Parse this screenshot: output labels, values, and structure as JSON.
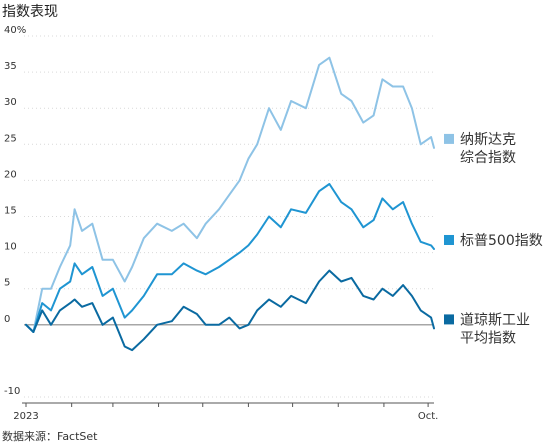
{
  "chart_data": {
    "type": "line",
    "title": "指数表现",
    "source": "数据来源：FactSet",
    "ylim": [
      -10,
      40
    ],
    "y_ticks": [
      -10,
      0,
      5,
      10,
      15,
      20,
      25,
      30,
      35,
      40
    ],
    "y_tick_labels": [
      "-10",
      "0",
      "5",
      "10",
      "15",
      "20",
      "25",
      "30",
      "35",
      "40%"
    ],
    "x_range": [
      "2023-01-01",
      "2023-10-05"
    ],
    "x_tick_labels": [
      {
        "date": "2023-01-01",
        "label": "2023"
      },
      {
        "date": "2023-10-01",
        "label": "Oct."
      }
    ],
    "x_month_ticks": [
      "2023-01-01",
      "2023-02-01",
      "2023-03-01",
      "2023-04-01",
      "2023-05-01",
      "2023-06-01",
      "2023-07-01",
      "2023-08-01",
      "2023-09-01",
      "2023-10-01"
    ],
    "grid": true,
    "series": [
      {
        "name": "纳斯达克综合指数",
        "legend_lines": [
          "纳斯达克",
          "综合指数"
        ],
        "color": "#8ec3e6",
        "points": [
          [
            "2023-01-01",
            0
          ],
          [
            "2023-01-06",
            -1
          ],
          [
            "2023-01-12",
            5
          ],
          [
            "2023-01-18",
            5
          ],
          [
            "2023-01-24",
            8
          ],
          [
            "2023-01-31",
            11
          ],
          [
            "2023-02-03",
            16
          ],
          [
            "2023-02-08",
            13
          ],
          [
            "2023-02-15",
            14
          ],
          [
            "2023-02-22",
            9
          ],
          [
            "2023-03-01",
            9
          ],
          [
            "2023-03-09",
            6
          ],
          [
            "2023-03-14",
            8
          ],
          [
            "2023-03-22",
            12
          ],
          [
            "2023-03-31",
            14
          ],
          [
            "2023-04-10",
            13
          ],
          [
            "2023-04-18",
            14
          ],
          [
            "2023-04-27",
            12
          ],
          [
            "2023-05-03",
            14
          ],
          [
            "2023-05-12",
            16
          ],
          [
            "2023-05-19",
            18
          ],
          [
            "2023-05-26",
            20
          ],
          [
            "2023-06-01",
            23
          ],
          [
            "2023-06-07",
            25
          ],
          [
            "2023-06-15",
            30
          ],
          [
            "2023-06-23",
            27
          ],
          [
            "2023-06-30",
            31
          ],
          [
            "2023-07-10",
            30
          ],
          [
            "2023-07-19",
            36
          ],
          [
            "2023-07-26",
            37
          ],
          [
            "2023-08-03",
            32
          ],
          [
            "2023-08-10",
            31
          ],
          [
            "2023-08-18",
            28
          ],
          [
            "2023-08-25",
            29
          ],
          [
            "2023-08-31",
            34
          ],
          [
            "2023-09-07",
            33
          ],
          [
            "2023-09-14",
            33
          ],
          [
            "2023-09-20",
            30
          ],
          [
            "2023-09-26",
            25
          ],
          [
            "2023-10-03",
            26
          ],
          [
            "2023-10-05",
            24.5
          ]
        ]
      },
      {
        "name": "标普500指数",
        "legend_lines": [
          "标普500指数"
        ],
        "color": "#1f95d2",
        "points": [
          [
            "2023-01-01",
            0
          ],
          [
            "2023-01-06",
            -1
          ],
          [
            "2023-01-12",
            3
          ],
          [
            "2023-01-18",
            2
          ],
          [
            "2023-01-24",
            5
          ],
          [
            "2023-01-31",
            6
          ],
          [
            "2023-02-03",
            8.5
          ],
          [
            "2023-02-08",
            7
          ],
          [
            "2023-02-15",
            8
          ],
          [
            "2023-02-22",
            4
          ],
          [
            "2023-03-01",
            5
          ],
          [
            "2023-03-09",
            1
          ],
          [
            "2023-03-14",
            2
          ],
          [
            "2023-03-22",
            4
          ],
          [
            "2023-03-31",
            7
          ],
          [
            "2023-04-10",
            7
          ],
          [
            "2023-04-18",
            8.5
          ],
          [
            "2023-04-27",
            7.5
          ],
          [
            "2023-05-03",
            7
          ],
          [
            "2023-05-12",
            8
          ],
          [
            "2023-05-19",
            9
          ],
          [
            "2023-05-26",
            10
          ],
          [
            "2023-06-01",
            11
          ],
          [
            "2023-06-07",
            12.5
          ],
          [
            "2023-06-15",
            15
          ],
          [
            "2023-06-23",
            13.5
          ],
          [
            "2023-06-30",
            16
          ],
          [
            "2023-07-10",
            15.5
          ],
          [
            "2023-07-19",
            18.5
          ],
          [
            "2023-07-26",
            19.5
          ],
          [
            "2023-08-03",
            17
          ],
          [
            "2023-08-10",
            16
          ],
          [
            "2023-08-18",
            13.5
          ],
          [
            "2023-08-25",
            14.5
          ],
          [
            "2023-08-31",
            17.5
          ],
          [
            "2023-09-07",
            16
          ],
          [
            "2023-09-14",
            17
          ],
          [
            "2023-09-20",
            14
          ],
          [
            "2023-09-26",
            11.5
          ],
          [
            "2023-10-03",
            11
          ],
          [
            "2023-10-05",
            10.5
          ]
        ]
      },
      {
        "name": "道琼斯工业平均指数",
        "legend_lines": [
          "道琼斯工业",
          "平均指数"
        ],
        "color": "#0a6aa1",
        "points": [
          [
            "2023-01-01",
            0
          ],
          [
            "2023-01-06",
            -1
          ],
          [
            "2023-01-12",
            2
          ],
          [
            "2023-01-18",
            0
          ],
          [
            "2023-01-24",
            2
          ],
          [
            "2023-01-31",
            3
          ],
          [
            "2023-02-03",
            3.5
          ],
          [
            "2023-02-08",
            2.5
          ],
          [
            "2023-02-15",
            3
          ],
          [
            "2023-02-22",
            0
          ],
          [
            "2023-03-01",
            1
          ],
          [
            "2023-03-09",
            -3
          ],
          [
            "2023-03-14",
            -3.5
          ],
          [
            "2023-03-22",
            -2
          ],
          [
            "2023-03-31",
            0
          ],
          [
            "2023-04-10",
            0.5
          ],
          [
            "2023-04-18",
            2.5
          ],
          [
            "2023-04-27",
            1.5
          ],
          [
            "2023-05-03",
            0
          ],
          [
            "2023-05-12",
            0
          ],
          [
            "2023-05-19",
            1
          ],
          [
            "2023-05-26",
            -0.5
          ],
          [
            "2023-06-01",
            0
          ],
          [
            "2023-06-07",
            2
          ],
          [
            "2023-06-15",
            3.5
          ],
          [
            "2023-06-23",
            2.5
          ],
          [
            "2023-06-30",
            4
          ],
          [
            "2023-07-10",
            3
          ],
          [
            "2023-07-19",
            6
          ],
          [
            "2023-07-26",
            7.5
          ],
          [
            "2023-08-03",
            6
          ],
          [
            "2023-08-10",
            6.5
          ],
          [
            "2023-08-18",
            4
          ],
          [
            "2023-08-25",
            3.5
          ],
          [
            "2023-08-31",
            5
          ],
          [
            "2023-09-07",
            4
          ],
          [
            "2023-09-14",
            5.5
          ],
          [
            "2023-09-20",
            4
          ],
          [
            "2023-09-26",
            2
          ],
          [
            "2023-10-03",
            1
          ],
          [
            "2023-10-05",
            -0.5
          ]
        ]
      }
    ]
  }
}
